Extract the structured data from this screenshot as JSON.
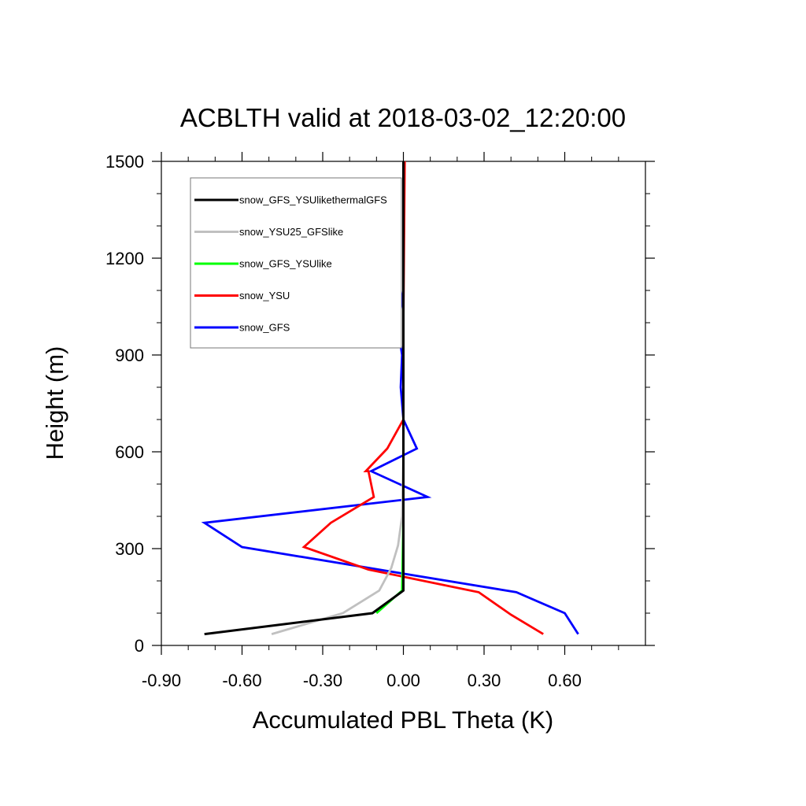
{
  "chart_data": {
    "type": "line",
    "title": "ACBLTH valid at 2018-03-02_12:20:00",
    "xlabel": "Accumulated PBL Theta (K)",
    "ylabel": "Height (m)",
    "xlim": [
      -0.9,
      0.9
    ],
    "ylim": [
      0,
      1500
    ],
    "xticks": [
      -0.9,
      -0.6,
      -0.3,
      0.0,
      0.3,
      0.6
    ],
    "xtick_labels": [
      "-0.90",
      "-0.60",
      "-0.30",
      "0.00",
      "0.30",
      "0.60"
    ],
    "yticks": [
      0,
      300,
      600,
      900,
      1200,
      1500
    ],
    "ytick_labels": [
      "0",
      "300",
      "600",
      "900",
      "1200",
      "1500"
    ],
    "grid": false,
    "legend_position": "top-left",
    "series": [
      {
        "name": "snow_GFS_YSUlikethermalGFS",
        "color": "#000000",
        "points": [
          [
            -0.74,
            35
          ],
          [
            -0.115,
            100
          ],
          [
            0.0,
            170
          ],
          [
            0.0,
            400
          ],
          [
            0.0,
            700
          ],
          [
            0.0,
            1000
          ],
          [
            0.0,
            1300
          ],
          [
            0.0,
            1500
          ]
        ]
      },
      {
        "name": "snow_YSU25_GFSlike",
        "color": "#c0c0c0",
        "points": [
          [
            -0.49,
            35
          ],
          [
            -0.225,
            100
          ],
          [
            -0.09,
            170
          ],
          [
            -0.045,
            240
          ],
          [
            -0.02,
            310
          ],
          [
            -0.005,
            400
          ],
          [
            0.0,
            600
          ],
          [
            0.0,
            1000
          ],
          [
            0.0,
            1500
          ]
        ]
      },
      {
        "name": "snow_GFS_YSUlike",
        "color": "#00ff00",
        "points": [
          [
            -0.1,
            100
          ],
          [
            -0.005,
            170
          ],
          [
            0.0,
            400
          ],
          [
            0.0,
            1500
          ]
        ]
      },
      {
        "name": "snow_YSU",
        "color": "#ff0000",
        "points": [
          [
            0.52,
            35
          ],
          [
            0.4,
            95
          ],
          [
            0.28,
            165
          ],
          [
            -0.13,
            235
          ],
          [
            -0.37,
            305
          ],
          [
            -0.27,
            380
          ],
          [
            -0.11,
            460
          ],
          [
            -0.13,
            540
          ],
          [
            -0.14,
            540
          ],
          [
            -0.06,
            610
          ],
          [
            0.0,
            700
          ],
          [
            0.0,
            1000
          ],
          [
            0.005,
            1500
          ]
        ]
      },
      {
        "name": "snow_GFS",
        "color": "#0000ff",
        "points": [
          [
            0.65,
            35
          ],
          [
            0.6,
            100
          ],
          [
            0.42,
            165
          ],
          [
            -0.6,
            305
          ],
          [
            -0.74,
            380
          ],
          [
            0.09,
            460
          ],
          [
            -0.12,
            540
          ],
          [
            0.05,
            610
          ],
          [
            0.0,
            700
          ],
          [
            -0.01,
            800
          ],
          [
            -0.005,
            900
          ],
          [
            -0.02,
            985
          ],
          [
            0.0,
            1100
          ],
          [
            0.0,
            1500
          ]
        ]
      }
    ]
  }
}
